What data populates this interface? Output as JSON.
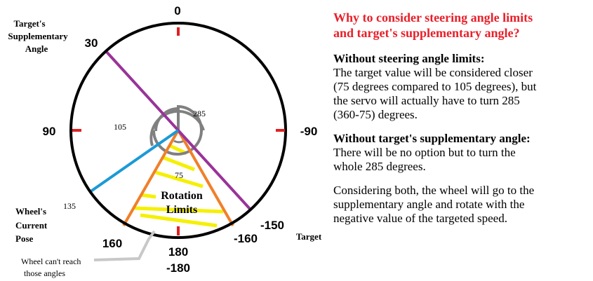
{
  "diagram": {
    "ticks": {
      "top": "0",
      "left": "90",
      "right": "-90",
      "bottom_top": "180",
      "bottom_bottom": "-180"
    },
    "angle_labels": {
      "a30": "30",
      "a135": "135",
      "a160": "160",
      "a_neg160": "-160",
      "a_neg150": "-150"
    },
    "arc_labels": {
      "a105": "105",
      "a285": "285",
      "a75": "75"
    },
    "labels": {
      "supplementary": [
        "Target's",
        "Supplementary",
        "Angle"
      ],
      "current_pose": [
        "Wheel's",
        "Current",
        "Pose"
      ],
      "target": "Target",
      "rotation_limits": [
        "Rotation",
        "Limits"
      ],
      "cant_reach": [
        "Wheel can't reach",
        "those angles"
      ]
    },
    "colors": {
      "supplementary_line": "#993399",
      "current_line": "#1c9ad6",
      "limits_line": "#f07f2a",
      "limits_hatch": "#f5f000",
      "tick": "#e02020",
      "arc": "#808080",
      "pointer": "#c8c8c8"
    }
  },
  "panel": {
    "headline": [
      "Why to consider steering angle limits",
      "and target's supplementary angle?"
    ],
    "blocks": [
      {
        "title": "Without steering angle limits:",
        "lines": [
          "The target value will be considered closer",
          "(75 degrees compared to 105 degrees), but",
          "the servo will actually have to turn 285",
          "(360-75) degrees."
        ]
      },
      {
        "title": "Without target's supplementary angle:",
        "lines": [
          "There will be no option but to turn the",
          "whole 285 degrees."
        ]
      },
      {
        "title": "",
        "lines": [
          "Considering both, the wheel will go to the",
          "supplementary angle and rotate with the",
          "negative value of the targeted speed."
        ]
      }
    ]
  }
}
